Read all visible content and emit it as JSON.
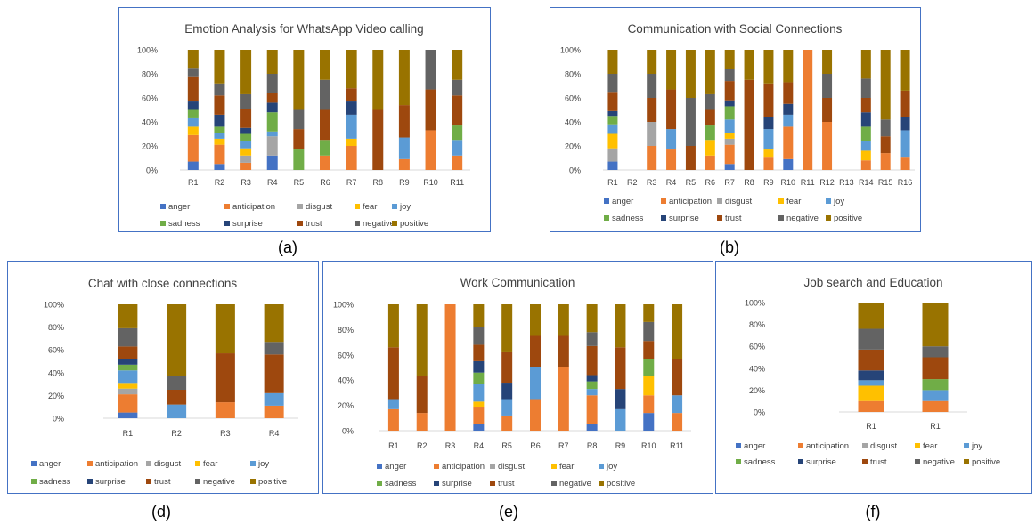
{
  "colors": {
    "anger": "#4472c4",
    "anticipation": "#ed7d31",
    "disgust": "#a5a5a5",
    "fear": "#ffc000",
    "joy": "#5b9bd5",
    "sadness": "#70ad47",
    "surprise": "#264478",
    "trust": "#9e480e",
    "negative": "#636363",
    "positive": "#997300"
  },
  "legend": [
    "anger",
    "anticipation",
    "disgust",
    "fear",
    "joy",
    "sadness",
    "surprise",
    "trust",
    "negative",
    "positive"
  ],
  "chart_data": [
    {
      "type": "bar",
      "stacked": "percent",
      "title": "Emotion Analysis for WhatsApp Video calling",
      "caption": "(a)",
      "yticks": [
        "0%",
        "20%",
        "40%",
        "60%",
        "80%",
        "100%"
      ],
      "categories": [
        "R1",
        "R2",
        "R3",
        "R4",
        "R5",
        "R6",
        "R7",
        "R8",
        "R9",
        "R10",
        "R11"
      ],
      "series": [
        {
          "name": "anger",
          "values": [
            7,
            5,
            0,
            12,
            0,
            0,
            0,
            0,
            0,
            0,
            0
          ]
        },
        {
          "name": "anticipation",
          "values": [
            22,
            16,
            6,
            0,
            0,
            12,
            20,
            0,
            9,
            33,
            12
          ]
        },
        {
          "name": "disgust",
          "values": [
            0,
            0,
            6,
            16,
            0,
            0,
            0,
            0,
            0,
            0,
            0
          ]
        },
        {
          "name": "fear",
          "values": [
            7,
            5,
            6,
            0,
            0,
            0,
            6,
            0,
            0,
            0,
            0
          ]
        },
        {
          "name": "joy",
          "values": [
            7,
            5,
            6,
            4,
            0,
            0,
            20,
            0,
            18,
            0,
            13
          ]
        },
        {
          "name": "sadness",
          "values": [
            7,
            5,
            6,
            16,
            17,
            13,
            0,
            0,
            0,
            0,
            12
          ]
        },
        {
          "name": "surprise",
          "values": [
            7,
            10,
            5,
            8,
            0,
            0,
            11,
            0,
            0,
            0,
            0
          ]
        },
        {
          "name": "trust",
          "values": [
            21,
            16,
            16,
            8,
            17,
            25,
            11,
            50,
            27,
            34,
            25
          ]
        },
        {
          "name": "negative",
          "values": [
            7,
            10,
            12,
            16,
            16,
            25,
            0,
            0,
            0,
            33,
            13
          ]
        },
        {
          "name": "positive",
          "values": [
            15,
            28,
            37,
            20,
            50,
            25,
            32,
            50,
            46,
            0,
            25
          ]
        }
      ]
    },
    {
      "type": "bar",
      "stacked": "percent",
      "title": "Communication with Social Connections",
      "caption": "(b)",
      "yticks": [
        "0%",
        "20%",
        "40%",
        "60%",
        "80%",
        "100%"
      ],
      "categories": [
        "R1",
        "R2",
        "R3",
        "R4",
        "R5",
        "R6",
        "R7",
        "R8",
        "R9",
        "R10",
        "R11",
        "R12",
        "R13",
        "R14",
        "R15",
        "R16"
      ],
      "series": [
        {
          "name": "anger",
          "values": [
            7,
            0,
            0,
            0,
            0,
            0,
            5,
            0,
            0,
            9,
            0,
            0,
            0,
            0,
            0,
            0
          ]
        },
        {
          "name": "anticipation",
          "values": [
            0,
            0,
            20,
            17,
            0,
            12,
            16,
            0,
            11,
            27,
            100,
            40,
            0,
            8,
            14,
            11
          ]
        },
        {
          "name": "disgust",
          "values": [
            11,
            0,
            20,
            0,
            0,
            0,
            5,
            0,
            0,
            0,
            0,
            0,
            0,
            0,
            0,
            0
          ]
        },
        {
          "name": "fear",
          "values": [
            12,
            0,
            0,
            0,
            0,
            13,
            5,
            0,
            6,
            0,
            0,
            0,
            0,
            8,
            0,
            0
          ]
        },
        {
          "name": "joy",
          "values": [
            8,
            0,
            0,
            17,
            0,
            0,
            11,
            0,
            17,
            10,
            0,
            0,
            0,
            8,
            0,
            22
          ]
        },
        {
          "name": "sadness",
          "values": [
            7,
            0,
            0,
            0,
            0,
            12,
            11,
            0,
            0,
            0,
            0,
            0,
            0,
            12,
            0,
            0
          ]
        },
        {
          "name": "surprise",
          "values": [
            4,
            0,
            0,
            0,
            0,
            0,
            5,
            0,
            10,
            9,
            0,
            0,
            0,
            12,
            0,
            11
          ]
        },
        {
          "name": "trust",
          "values": [
            16,
            0,
            20,
            33,
            20,
            13,
            16,
            75,
            28,
            18,
            0,
            20,
            0,
            12,
            14,
            22
          ]
        },
        {
          "name": "negative",
          "values": [
            15,
            0,
            20,
            0,
            40,
            13,
            10,
            0,
            0,
            0,
            0,
            20,
            0,
            16,
            14,
            0
          ]
        },
        {
          "name": "positive",
          "values": [
            20,
            0,
            20,
            33,
            40,
            37,
            16,
            25,
            28,
            27,
            0,
            20,
            0,
            24,
            58,
            34
          ]
        }
      ]
    },
    {
      "type": "bar",
      "stacked": "percent",
      "title": "Chat with close connections",
      "caption": "(d)",
      "yticks": [
        "0%",
        "20%",
        "40%",
        "60%",
        "80%",
        "100%"
      ],
      "categories": [
        "R1",
        "R2",
        "R3",
        "R4"
      ],
      "series": [
        {
          "name": "anger",
          "values": [
            5,
            0,
            0,
            0
          ]
        },
        {
          "name": "anticipation",
          "values": [
            16,
            0,
            14,
            11
          ]
        },
        {
          "name": "disgust",
          "values": [
            5,
            0,
            0,
            0
          ]
        },
        {
          "name": "fear",
          "values": [
            5,
            0,
            0,
            0
          ]
        },
        {
          "name": "joy",
          "values": [
            11,
            12,
            0,
            11
          ]
        },
        {
          "name": "sadness",
          "values": [
            5,
            0,
            0,
            0
          ]
        },
        {
          "name": "surprise",
          "values": [
            5,
            0,
            0,
            0
          ]
        },
        {
          "name": "trust",
          "values": [
            11,
            13,
            43,
            34
          ]
        },
        {
          "name": "negative",
          "values": [
            16,
            12,
            0,
            11
          ]
        },
        {
          "name": "positive",
          "values": [
            21,
            63,
            43,
            33
          ]
        }
      ]
    },
    {
      "type": "bar",
      "stacked": "percent",
      "title": "Work Communication",
      "caption": "(e)",
      "yticks": [
        "0%",
        "20%",
        "40%",
        "60%",
        "80%",
        "100%"
      ],
      "categories": [
        "R1",
        "R2",
        "R3",
        "R4",
        "R5",
        "R6",
        "R7",
        "R8",
        "R9",
        "R10",
        "R11"
      ],
      "series": [
        {
          "name": "anger",
          "values": [
            0,
            0,
            0,
            5,
            0,
            0,
            0,
            5,
            0,
            14,
            0
          ]
        },
        {
          "name": "anticipation",
          "values": [
            17,
            14,
            100,
            14,
            12,
            25,
            50,
            23,
            0,
            14,
            14
          ]
        },
        {
          "name": "disgust",
          "values": [
            0,
            0,
            0,
            0,
            0,
            0,
            0,
            0,
            0,
            0,
            0
          ]
        },
        {
          "name": "fear",
          "values": [
            0,
            0,
            0,
            4,
            0,
            0,
            0,
            0,
            0,
            15,
            0
          ]
        },
        {
          "name": "joy",
          "values": [
            8,
            0,
            0,
            14,
            13,
            25,
            0,
            5,
            17,
            0,
            14
          ]
        },
        {
          "name": "sadness",
          "values": [
            0,
            0,
            0,
            9,
            0,
            0,
            0,
            6,
            0,
            14,
            0
          ]
        },
        {
          "name": "surprise",
          "values": [
            0,
            0,
            0,
            9,
            13,
            0,
            0,
            5,
            16,
            0,
            0
          ]
        },
        {
          "name": "trust",
          "values": [
            41,
            29,
            0,
            13,
            24,
            25,
            25,
            23,
            33,
            14,
            29
          ]
        },
        {
          "name": "negative",
          "values": [
            0,
            0,
            0,
            14,
            0,
            0,
            0,
            11,
            0,
            15,
            0
          ]
        },
        {
          "name": "positive",
          "values": [
            34,
            57,
            0,
            18,
            38,
            25,
            25,
            22,
            34,
            14,
            43
          ]
        }
      ]
    },
    {
      "type": "bar",
      "stacked": "percent",
      "title": "Job search and Education",
      "caption": "(f)",
      "yticks": [
        "0%",
        "20%",
        "40%",
        "60%",
        "80%",
        "100%"
      ],
      "categories": [
        "R1",
        "R1"
      ],
      "series": [
        {
          "name": "anger",
          "values": [
            0,
            0
          ]
        },
        {
          "name": "anticipation",
          "values": [
            10,
            10
          ]
        },
        {
          "name": "disgust",
          "values": [
            0,
            0
          ]
        },
        {
          "name": "fear",
          "values": [
            14,
            0
          ]
        },
        {
          "name": "joy",
          "values": [
            5,
            10
          ]
        },
        {
          "name": "sadness",
          "values": [
            0,
            10
          ]
        },
        {
          "name": "surprise",
          "values": [
            9,
            0
          ]
        },
        {
          "name": "trust",
          "values": [
            19,
            20
          ]
        },
        {
          "name": "negative",
          "values": [
            19,
            10
          ]
        },
        {
          "name": "positive",
          "values": [
            24,
            40
          ]
        }
      ]
    }
  ]
}
